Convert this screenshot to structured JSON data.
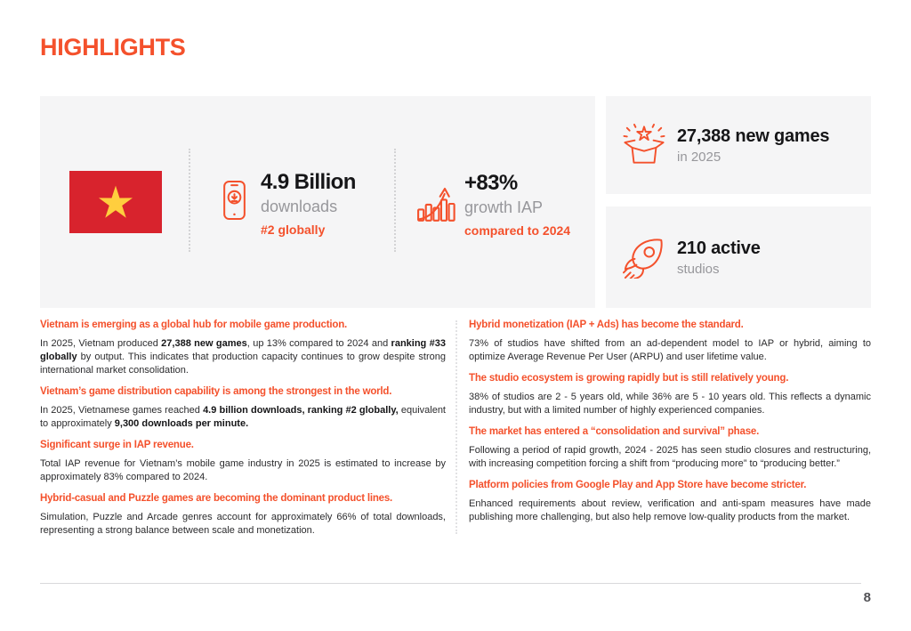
{
  "page": {
    "title": "HIGHLIGHTS",
    "page_number": "8"
  },
  "colors": {
    "accent": "#F4512C",
    "flag_red": "#D8232D",
    "star_yellow": "#FFCE3E",
    "panel_bg": "#F5F5F6",
    "text_dark": "#161618",
    "text_gray": "#97979B"
  },
  "hero": {
    "flag": {
      "name": "Vietnam flag"
    },
    "downloads": {
      "icon": "smartphone-download-icon",
      "value": "4.9 Billion",
      "label": "downloads",
      "sub": "#2 globally"
    },
    "growth": {
      "icon": "bar-chart-growth-icon",
      "value": "+83%",
      "label": "growth IAP",
      "sub": "compared to 2024"
    },
    "new_games": {
      "icon": "gift-box-burst-icon",
      "value": "27,388 new games",
      "label": "in 2025"
    },
    "studios": {
      "icon": "rocket-icon",
      "value": "210 active",
      "label": "studios"
    }
  },
  "columns": {
    "left": [
      {
        "heading": "Vietnam is emerging as a global hub for mobile game production.",
        "body": [
          {
            "t": "In 2025, Vietnam produced ",
            "b": false
          },
          {
            "t": "27,388 new games",
            "b": true
          },
          {
            "t": ", up 13% compared to 2024 and ",
            "b": false
          },
          {
            "t": "ranking #33 globally",
            "b": true
          },
          {
            "t": " by output. This indicates that production capacity continues to grow despite strong international market consolidation.",
            "b": false
          }
        ]
      },
      {
        "heading": "Vietnam’s game distribution capability is among the strongest in the world.",
        "body": [
          {
            "t": "In 2025, Vietnamese games reached ",
            "b": false
          },
          {
            "t": "4.9 billion downloads, ranking #2 globally,",
            "b": true
          },
          {
            "t": " equivalent to approximately ",
            "b": false
          },
          {
            "t": "9,300 downloads per minute.",
            "b": true
          }
        ]
      },
      {
        "heading": "Significant surge in IAP revenue.",
        "body": [
          {
            "t": "Total IAP revenue for Vietnam’s mobile game industry in 2025 is estimated to increase by approximately 83% compared to 2024.",
            "b": false
          }
        ]
      },
      {
        "heading": "Hybrid-casual and Puzzle games are becoming the dominant product lines.",
        "body": [
          {
            "t": "Simulation, Puzzle and Arcade genres account for approximately 66% of total downloads, representing a strong balance between scale and monetization.",
            "b": false
          }
        ]
      }
    ],
    "right": [
      {
        "heading": "Hybrid monetization (IAP + Ads) has become the standard.",
        "body": [
          {
            "t": "73% of studios have shifted from an ad-dependent model to IAP or hybrid, aiming to optimize Average Revenue Per User (ARPU) and user lifetime value.",
            "b": false
          }
        ]
      },
      {
        "heading": "The studio ecosystem is growing rapidly but is still relatively young.",
        "body": [
          {
            "t": "38% of studios are 2 - 5 years old, while 36% are 5 - 10 years old. This reflects a dynamic industry, but with a limited number of highly experienced companies.",
            "b": false
          }
        ]
      },
      {
        "heading": "The market has entered a “consolidation and survival” phase.",
        "body": [
          {
            "t": "Following a period of rapid growth, 2024 - 2025 has seen studio closures and restructuring, with increasing competition forcing a shift from “producing more” to “producing better.”",
            "b": false
          }
        ]
      },
      {
        "heading": "Platform policies from Google Play and App Store have become stricter.",
        "body": [
          {
            "t": "Enhanced requirements about review, verification and anti-spam measures have made publishing more challenging, but also help remove low-quality products from the market.",
            "b": false
          }
        ]
      }
    ]
  }
}
